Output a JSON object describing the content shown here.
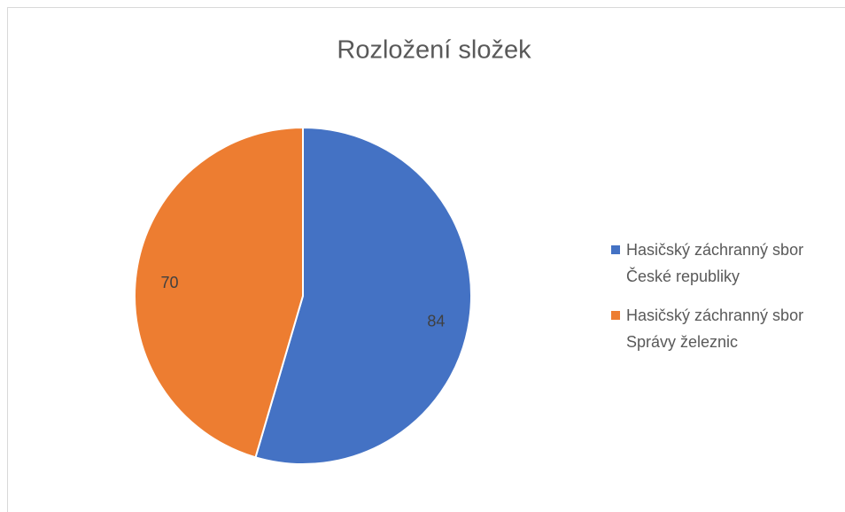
{
  "chart_data": {
    "type": "pie",
    "title": "Rozložení složek",
    "categories": [
      "Hasičský záchranný sbor České republiky",
      "Hasičský záchranný sbor Správy železnic"
    ],
    "values": [
      84,
      70
    ],
    "colors": [
      "#4472c4",
      "#ed7d31"
    ],
    "legend": "right"
  }
}
